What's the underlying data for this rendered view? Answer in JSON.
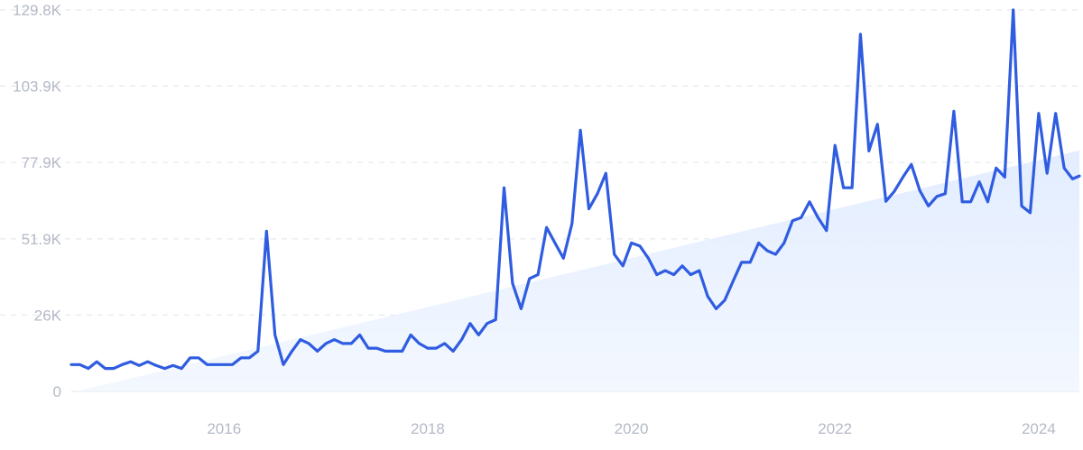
{
  "chart_data": {
    "type": "line",
    "title": "",
    "xlabel": "",
    "ylabel": "",
    "y_ticks": [
      "0",
      "26K",
      "51.9K",
      "77.9K",
      "103.9K",
      "129.8K"
    ],
    "y_tick_values": [
      0,
      26000,
      51900,
      77900,
      103900,
      129800
    ],
    "ylim": [
      0,
      129800
    ],
    "x_ticks": [
      "2016",
      "2018",
      "2020",
      "2022",
      "2024"
    ],
    "x_tick_values": [
      2016,
      2018,
      2020,
      2022,
      2024
    ],
    "xlim": [
      2014.5,
      2024.4
    ],
    "grid": true,
    "legend": "none",
    "colors": {
      "line": "#2f5ce0",
      "trend_fill": "#e6efff",
      "grid": "#dfe3ea",
      "tick_text": "#b4bac6"
    },
    "trend": {
      "x": [
        2014.55,
        2024.4
      ],
      "y": [
        0,
        82000
      ]
    },
    "series": [
      {
        "x": [
          2014.5,
          2014.583,
          2014.667,
          2014.75,
          2014.833,
          2014.917,
          2015.0,
          2015.083,
          2015.167,
          2015.25,
          2015.333,
          2015.417,
          2015.5,
          2015.583,
          2015.667,
          2015.75,
          2015.833,
          2015.917,
          2016.0,
          2016.083,
          2016.167,
          2016.25,
          2016.333,
          2016.417,
          2016.5,
          2016.583,
          2016.667,
          2016.75,
          2016.833,
          2016.917,
          2017.0,
          2017.083,
          2017.167,
          2017.25,
          2017.333,
          2017.417,
          2017.5,
          2017.583,
          2017.667,
          2017.75,
          2017.833,
          2017.917,
          2018.0,
          2018.083,
          2018.167,
          2018.25,
          2018.333,
          2018.417,
          2018.5,
          2018.583,
          2018.667,
          2018.75,
          2018.833,
          2018.917,
          2019.0,
          2019.083,
          2019.167,
          2019.25,
          2019.333,
          2019.417,
          2019.5,
          2019.583,
          2019.667,
          2019.75,
          2019.833,
          2019.917,
          2020.0,
          2020.083,
          2020.167,
          2020.25,
          2020.333,
          2020.417,
          2020.5,
          2020.583,
          2020.667,
          2020.75,
          2020.833,
          2020.917,
          2021.0,
          2021.083,
          2021.167,
          2021.25,
          2021.333,
          2021.417,
          2021.5,
          2021.583,
          2021.667,
          2021.75,
          2021.833,
          2021.917,
          2022.0,
          2022.083,
          2022.167,
          2022.25,
          2022.333,
          2022.417,
          2022.5,
          2022.583,
          2022.667,
          2022.75,
          2022.833,
          2022.917,
          2023.0,
          2023.083,
          2023.167,
          2023.25,
          2023.333,
          2023.417,
          2023.5,
          2023.583,
          2023.667,
          2023.75,
          2023.833,
          2023.917,
          2024.0,
          2024.083,
          2024.167,
          2024.25,
          2024.333,
          2024.4
        ],
        "y": [
          9100,
          9100,
          7800,
          10100,
          7800,
          7800,
          9100,
          10100,
          8800,
          10100,
          8800,
          7800,
          8800,
          7800,
          11400,
          11400,
          9100,
          9100,
          9100,
          9100,
          11400,
          11400,
          13700,
          54500,
          19200,
          9100,
          13700,
          17600,
          16300,
          13700,
          16300,
          17600,
          16300,
          16300,
          19200,
          14700,
          14700,
          13700,
          13700,
          13700,
          19200,
          16300,
          14700,
          14700,
          16300,
          13700,
          17600,
          23100,
          19200,
          23100,
          24400,
          69300,
          36800,
          28100,
          38400,
          39700,
          55800,
          50500,
          45300,
          57100,
          88900,
          62100,
          67300,
          74200,
          46600,
          42700,
          50500,
          49500,
          45300,
          39700,
          41100,
          39700,
          42700,
          39700,
          41100,
          32300,
          28100,
          31000,
          37600,
          43900,
          43900,
          50500,
          47900,
          46600,
          50500,
          58100,
          59100,
          64500,
          59100,
          54700,
          83700,
          69300,
          69300,
          121500,
          81800,
          90900,
          64700,
          68100,
          72900,
          77200,
          68300,
          63100,
          66300,
          67300,
          95300,
          64500,
          64500,
          71300,
          64500,
          76000,
          72900,
          129800,
          63100,
          60800,
          94600,
          74200,
          94600,
          76000,
          72300,
          73300
        ]
      }
    ]
  }
}
